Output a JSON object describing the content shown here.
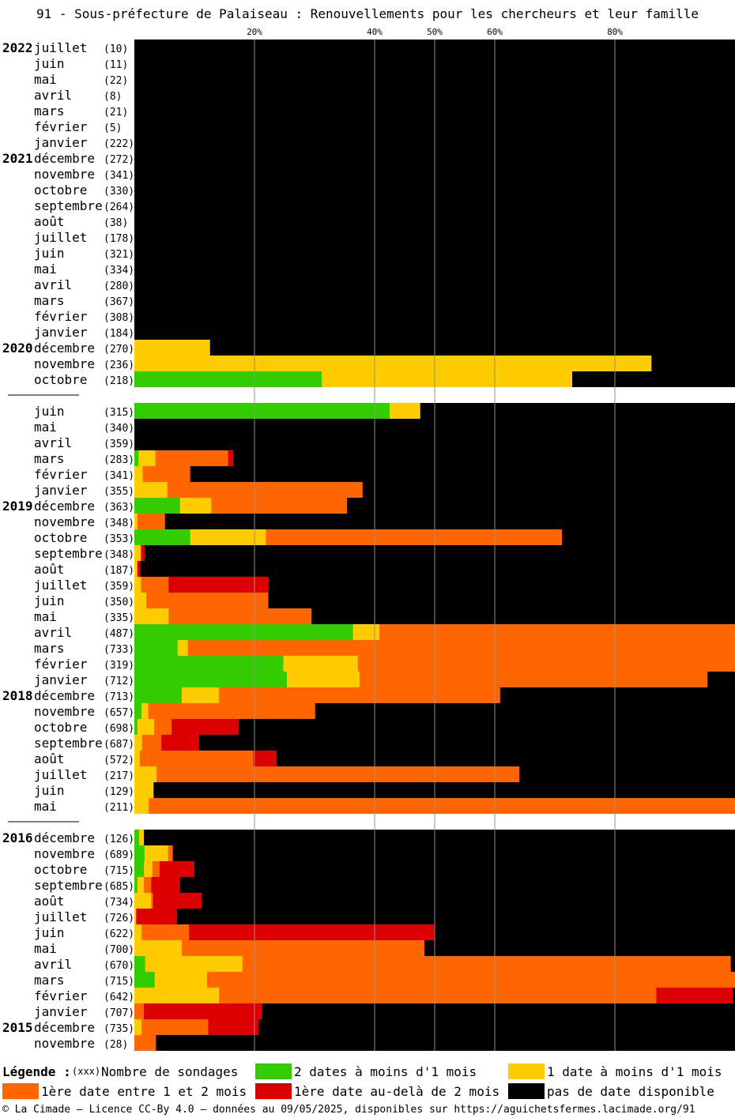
{
  "title": "91 - Sous-préfecture de Palaiseau : Renouvellements pour les chercheurs et leur famille",
  "colors": {
    "two_dates": "#33cc00",
    "one_date": "#ffcc00",
    "first_1_2": "#ff6600",
    "first_over_2": "#dd0000",
    "none": "#000000"
  },
  "legend": {
    "label": "Légende :",
    "count_marker": "(xxx)",
    "count_text": "Nombre de sondages",
    "two_dates": "2 dates à moins d'1 mois",
    "one_date": "1 date à moins d'1 mois",
    "first_1_2": "1ère date entre 1 et 2 mois",
    "first_over_2": "1ère date au-delà de 2 mois",
    "none": "pas de date disponible"
  },
  "footer": "© La Cimade — Licence CC-By 4.0 — données au 09/05/2025, disponibles sur https://aguichetsfermes.lacimade.org/91",
  "chart_data": {
    "type": "bar",
    "orientation": "horizontal-stacked-percent",
    "x_ticks": [
      "20%",
      "40%",
      "50%",
      "60%",
      "80%"
    ],
    "xlim": [
      0,
      100
    ],
    "series_order": [
      "two_dates",
      "one_date",
      "first_1_2",
      "first_over_2",
      "none"
    ],
    "groups": [
      {
        "rows": [
          {
            "year": "2022",
            "month": "juillet",
            "count": "(10)",
            "v": [
              0,
              0,
              0,
              0,
              100
            ]
          },
          {
            "year": "",
            "month": "juin",
            "count": "(11)",
            "v": [
              0,
              0,
              0,
              0,
              100
            ]
          },
          {
            "year": "",
            "month": "mai",
            "count": "(22)",
            "v": [
              0,
              0,
              0,
              0,
              100
            ]
          },
          {
            "year": "",
            "month": "avril",
            "count": "(8)",
            "v": [
              0,
              0,
              0,
              0,
              100
            ]
          },
          {
            "year": "",
            "month": "mars",
            "count": "(21)",
            "v": [
              0,
              0,
              0,
              0,
              100
            ]
          },
          {
            "year": "",
            "month": "février",
            "count": "(5)",
            "v": [
              0,
              0,
              0,
              0,
              100
            ]
          },
          {
            "year": "",
            "month": "janvier",
            "count": "(222)",
            "v": [
              0,
              0,
              0,
              0,
              100
            ]
          },
          {
            "year": "2021",
            "month": "décembre",
            "count": "(272)",
            "v": [
              0,
              0,
              0,
              0,
              100
            ]
          },
          {
            "year": "",
            "month": "novembre",
            "count": "(341)",
            "v": [
              0,
              0,
              0,
              0,
              100
            ]
          },
          {
            "year": "",
            "month": "octobre",
            "count": "(330)",
            "v": [
              0,
              0,
              0,
              0,
              100
            ]
          },
          {
            "year": "",
            "month": "septembre",
            "count": "(264)",
            "v": [
              0,
              0,
              0,
              0,
              100
            ]
          },
          {
            "year": "",
            "month": "août",
            "count": "(38)",
            "v": [
              0,
              0,
              0,
              0,
              100
            ]
          },
          {
            "year": "",
            "month": "juillet",
            "count": "(178)",
            "v": [
              0,
              0,
              0,
              0,
              100
            ]
          },
          {
            "year": "",
            "month": "juin",
            "count": "(321)",
            "v": [
              0,
              0,
              0,
              0,
              100
            ]
          },
          {
            "year": "",
            "month": "mai",
            "count": "(334)",
            "v": [
              0,
              0,
              0,
              0,
              100
            ]
          },
          {
            "year": "",
            "month": "avril",
            "count": "(280)",
            "v": [
              0,
              0,
              0,
              0,
              100
            ]
          },
          {
            "year": "",
            "month": "mars",
            "count": "(367)",
            "v": [
              0,
              0,
              0,
              0,
              100
            ]
          },
          {
            "year": "",
            "month": "février",
            "count": "(308)",
            "v": [
              0,
              0,
              0,
              0,
              100
            ]
          },
          {
            "year": "",
            "month": "janvier",
            "count": "(184)",
            "v": [
              0,
              0,
              0,
              0,
              100
            ]
          },
          {
            "year": "2020",
            "month": "décembre",
            "count": "(270)",
            "v": [
              0,
              12.6,
              0,
              0,
              87.4
            ]
          },
          {
            "year": "",
            "month": "novembre",
            "count": "(236)",
            "v": [
              0,
              86.1,
              0,
              0,
              13.9
            ]
          },
          {
            "year": "",
            "month": "octobre",
            "count": "(218)",
            "v": [
              31.2,
              41.7,
              0,
              0,
              27.1
            ]
          }
        ]
      },
      {
        "rows": [
          {
            "year": "",
            "month": "juin",
            "count": "(315)",
            "v": [
              42.5,
              5.1,
              0,
              0,
              52.4
            ]
          },
          {
            "year": "",
            "month": "mai",
            "count": "(340)",
            "v": [
              0,
              0,
              0,
              0,
              100
            ]
          },
          {
            "year": "",
            "month": "avril",
            "count": "(359)",
            "v": [
              0,
              0,
              0,
              0,
              100
            ]
          },
          {
            "year": "",
            "month": "mars",
            "count": "(283)",
            "v": [
              0.7,
              2.8,
              12.1,
              0.9,
              83.5
            ]
          },
          {
            "year": "",
            "month": "février",
            "count": "(341)",
            "v": [
              0,
              1.4,
              7.9,
              0,
              90.7
            ]
          },
          {
            "year": "",
            "month": "janvier",
            "count": "(355)",
            "v": [
              0,
              5.5,
              32.5,
              0,
              62
            ]
          },
          {
            "year": "2019",
            "month": "décembre",
            "count": "(363)",
            "v": [
              7.6,
              5.2,
              22.6,
              0,
              64.6
            ]
          },
          {
            "year": "",
            "month": "novembre",
            "count": "(348)",
            "v": [
              0,
              0.5,
              4.6,
              0,
              94.9
            ]
          },
          {
            "year": "",
            "month": "octobre",
            "count": "(353)",
            "v": [
              9.3,
              12.6,
              49.3,
              0,
              28.8
            ]
          },
          {
            "year": "",
            "month": "septembre",
            "count": "(348)",
            "v": [
              0,
              1.1,
              0,
              0.6,
              98.3
            ]
          },
          {
            "year": "",
            "month": "août",
            "count": "(187)",
            "v": [
              0,
              0.5,
              0,
              0.5,
              99
            ]
          },
          {
            "year": "",
            "month": "juillet",
            "count": "(359)",
            "v": [
              0,
              1.1,
              4.6,
              16.7,
              77.6
            ]
          },
          {
            "year": "",
            "month": "juin",
            "count": "(350)",
            "v": [
              0,
              2,
              20.3,
              0,
              77.7
            ]
          },
          {
            "year": "",
            "month": "mai",
            "count": "(335)",
            "v": [
              0,
              5.7,
              23.8,
              0,
              70.5
            ]
          },
          {
            "year": "",
            "month": "avril",
            "count": "(487)",
            "v": [
              36.4,
              4.4,
              59.2,
              0,
              0
            ]
          },
          {
            "year": "",
            "month": "mars",
            "count": "(733)",
            "v": [
              7.2,
              1.7,
              91.1,
              0,
              0
            ]
          },
          {
            "year": "",
            "month": "février",
            "count": "(319)",
            "v": [
              24.8,
              12.4,
              62.8,
              0,
              0
            ]
          },
          {
            "year": "",
            "month": "janvier",
            "count": "(712)",
            "v": [
              25.4,
              12.1,
              57.9,
              0,
              4.6
            ]
          },
          {
            "year": "2018",
            "month": "décembre",
            "count": "(713)",
            "v": [
              7.9,
              6.2,
              46.8,
              0,
              39.1
            ]
          },
          {
            "year": "",
            "month": "novembre",
            "count": "(657)",
            "v": [
              1.2,
              1.1,
              27.8,
              0,
              69.9
            ]
          },
          {
            "year": "",
            "month": "octobre",
            "count": "(698)",
            "v": [
              0.5,
              2.8,
              2.9,
              11.2,
              82.6
            ]
          },
          {
            "year": "",
            "month": "septembre",
            "count": "(687)",
            "v": [
              0,
              1.3,
              3.2,
              6.3,
              89.2
            ]
          },
          {
            "year": "",
            "month": "août",
            "count": "(572)",
            "v": [
              0,
              0.9,
              18.9,
              3.9,
              76.3
            ]
          },
          {
            "year": "",
            "month": "juillet",
            "count": "(217)",
            "v": [
              0,
              3.7,
              60.4,
              0,
              35.9
            ]
          },
          {
            "year": "",
            "month": "juin",
            "count": "(129)",
            "v": [
              0,
              3.2,
              0,
              0,
              96.8
            ]
          },
          {
            "year": "",
            "month": "mai",
            "count": "(211)",
            "v": [
              0,
              2.4,
              97.6,
              0,
              0
            ]
          }
        ]
      },
      {
        "rows": [
          {
            "year": "2016",
            "month": "décembre",
            "count": "(126)",
            "v": [
              0.8,
              0.8,
              0,
              0,
              98.4
            ]
          },
          {
            "year": "",
            "month": "novembre",
            "count": "(689)",
            "v": [
              1.7,
              3.9,
              0.8,
              0,
              93.6
            ]
          },
          {
            "year": "",
            "month": "octobre",
            "count": "(715)",
            "v": [
              1.6,
              1.4,
              1.2,
              5.8,
              90
            ]
          },
          {
            "year": "",
            "month": "septembre",
            "count": "(685)",
            "v": [
              0.5,
              1.1,
              1.2,
              4.8,
              92.4
            ]
          },
          {
            "year": "",
            "month": "août",
            "count": "(734)",
            "v": [
              0,
              2.8,
              0.3,
              8.1,
              88.8
            ]
          },
          {
            "year": "",
            "month": "juillet",
            "count": "(726)",
            "v": [
              0,
              0.3,
              0,
              6.8,
              92.9
            ]
          },
          {
            "year": "",
            "month": "juin",
            "count": "(622)",
            "v": [
              0,
              1.2,
              7.9,
              40.8,
              50.1
            ]
          },
          {
            "year": "",
            "month": "mai",
            "count": "(700)",
            "v": [
              0,
              7.9,
              40.4,
              0,
              51.7
            ]
          },
          {
            "year": "",
            "month": "avril",
            "count": "(670)",
            "v": [
              1.8,
              16.2,
              81.3,
              0,
              0.7
            ]
          },
          {
            "year": "",
            "month": "mars",
            "count": "(715)",
            "v": [
              3.4,
              8.7,
              87.9,
              0,
              0
            ]
          },
          {
            "year": "",
            "month": "février",
            "count": "(642)",
            "v": [
              0,
              14.1,
              72.8,
              12.8,
              0.3
            ]
          },
          {
            "year": "",
            "month": "janvier",
            "count": "(707)",
            "v": [
              0,
              0,
              1.6,
              19.7,
              78.7
            ]
          },
          {
            "year": "2015",
            "month": "décembre",
            "count": "(735)",
            "v": [
              0,
              1.2,
              11.1,
              8.4,
              79.3
            ]
          },
          {
            "year": "",
            "month": "novembre",
            "count": "(28)",
            "v": [
              0,
              0,
              3.6,
              0,
              96.4
            ]
          }
        ]
      }
    ]
  }
}
